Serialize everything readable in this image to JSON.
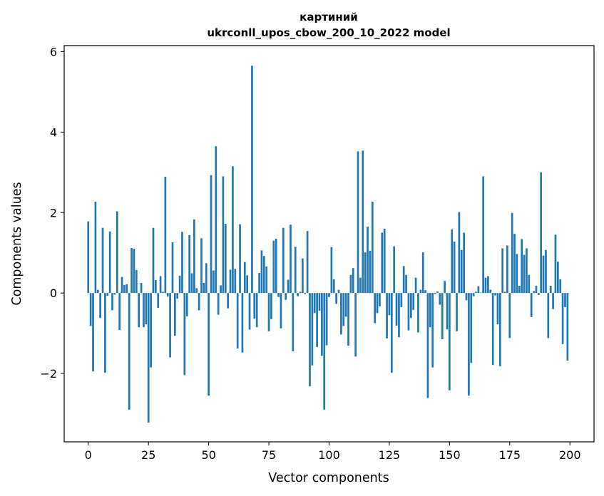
{
  "chart_data": {
    "type": "bar",
    "title_lines": [
      "картиний",
      "ukrconll_upos_cbow_200_10_2022 model"
    ],
    "xlabel": "Vector components",
    "ylabel": "Components values",
    "xlim": [
      -10,
      210
    ],
    "ylim": [
      -3.7,
      6.15
    ],
    "xticks": [
      0,
      25,
      50,
      75,
      100,
      125,
      150,
      175,
      200
    ],
    "xtick_labels": [
      "0",
      "25",
      "50",
      "75",
      "100",
      "125",
      "150",
      "175",
      "200"
    ],
    "yticks": [
      -2,
      0,
      2,
      4,
      6
    ],
    "ytick_labels": [
      "−2",
      "0",
      "2",
      "4",
      "6"
    ],
    "grid": false,
    "bar_color": "#1f77b4",
    "x": [
      0,
      1,
      2,
      3,
      4,
      5,
      6,
      7,
      8,
      9,
      10,
      11,
      12,
      13,
      14,
      15,
      16,
      17,
      18,
      19,
      20,
      21,
      22,
      23,
      24,
      25,
      26,
      27,
      28,
      29,
      30,
      31,
      32,
      33,
      34,
      35,
      36,
      37,
      38,
      39,
      40,
      41,
      42,
      43,
      44,
      45,
      46,
      47,
      48,
      49,
      50,
      51,
      52,
      53,
      54,
      55,
      56,
      57,
      58,
      59,
      60,
      61,
      62,
      63,
      64,
      65,
      66,
      67,
      68,
      69,
      70,
      71,
      72,
      73,
      74,
      75,
      76,
      77,
      78,
      79,
      80,
      81,
      82,
      83,
      84,
      85,
      86,
      87,
      88,
      89,
      90,
      91,
      92,
      93,
      94,
      95,
      96,
      97,
      98,
      99,
      100,
      101,
      102,
      103,
      104,
      105,
      106,
      107,
      108,
      109,
      110,
      111,
      112,
      113,
      114,
      115,
      116,
      117,
      118,
      119,
      120,
      121,
      122,
      123,
      124,
      125,
      126,
      127,
      128,
      129,
      130,
      131,
      132,
      133,
      134,
      135,
      136,
      137,
      138,
      139,
      140,
      141,
      142,
      143,
      144,
      145,
      146,
      147,
      148,
      149,
      150,
      151,
      152,
      153,
      154,
      155,
      156,
      157,
      158,
      159,
      160,
      161,
      162,
      163,
      164,
      165,
      166,
      167,
      168,
      169,
      170,
      171,
      172,
      173,
      174,
      175,
      176,
      177,
      178,
      179,
      180,
      181,
      182,
      183,
      184,
      185,
      186,
      187,
      188,
      189,
      190,
      191,
      192,
      193,
      194,
      195,
      196,
      197,
      198,
      199
    ],
    "values": [
      1.78,
      -0.82,
      -1.95,
      2.27,
      0.08,
      -0.62,
      1.62,
      -1.98,
      -0.07,
      1.53,
      -0.43,
      -0.04,
      2.03,
      -0.92,
      0.4,
      0.2,
      0.22,
      -2.9,
      1.12,
      1.1,
      0.57,
      -0.85,
      0.25,
      -0.85,
      -0.78,
      -3.22,
      -1.85,
      1.62,
      0.32,
      -0.37,
      0.42,
      0.03,
      2.89,
      -0.09,
      -1.6,
      1.26,
      -1.06,
      -0.14,
      0.43,
      1.52,
      -2.04,
      -0.58,
      1.44,
      0.49,
      1.83,
      0.12,
      -0.43,
      1.36,
      0.25,
      0.74,
      -2.55,
      2.93,
      0.56,
      3.65,
      -0.54,
      0.19,
      2.9,
      1.72,
      -0.38,
      0.58,
      3.15,
      0.6,
      -1.38,
      1.71,
      -1.48,
      0.77,
      0.44,
      -0.91,
      5.65,
      -0.64,
      -0.85,
      0.5,
      1.06,
      0.92,
      0.66,
      -0.95,
      -0.65,
      1.3,
      1.35,
      -0.1,
      -0.88,
      1.62,
      -0.17,
      0.33,
      1.7,
      -1.45,
      1.15,
      -0.08,
      0.03,
      0.86,
      -0.03,
      1.54,
      -2.32,
      -1.8,
      -0.5,
      -1.34,
      -0.44,
      -1.56,
      -2.9,
      -1.3,
      -0.1,
      1.14,
      0.34,
      -0.27,
      0.08,
      -1.03,
      -0.82,
      -0.59,
      -1.31,
      0.45,
      0.62,
      -1.58,
      3.52,
      0.38,
      3.54,
      1.01,
      1.65,
      1.05,
      2.27,
      -0.75,
      -0.5,
      -0.33,
      1.5,
      1.6,
      -1.13,
      -0.55,
      -1.98,
      1.16,
      -0.81,
      -1.1,
      -0.35,
      0.67,
      0.45,
      -0.93,
      -0.62,
      -0.42,
      0.38,
      -0.98,
      0.08,
      1.01,
      0.07,
      -2.61,
      -0.85,
      -1.85,
      -0.03,
      0.04,
      -0.29,
      -1.15,
      0.3,
      -0.9,
      -2.42,
      1.58,
      1.28,
      -0.95,
      2.01,
      1.07,
      1.5,
      -0.18,
      -2.55,
      -1.74,
      -0.08,
      0.03,
      0.17,
      0.01,
      2.9,
      0.38,
      0.42,
      0.08,
      -1.79,
      -0.06,
      -0.78,
      -1.82,
      1.11,
      0.03,
      1.18,
      -1.12,
      1.99,
      1.47,
      0.97,
      0.18,
      1.34,
      0.95,
      1.11,
      0.45,
      -0.6,
      0.05,
      0.18,
      -0.05,
      3.0,
      0.93,
      1.07,
      -1.12,
      0.18,
      -0.4,
      1.45,
      0.78,
      0.34,
      -1.27,
      -0.35,
      -1.68
    ]
  }
}
